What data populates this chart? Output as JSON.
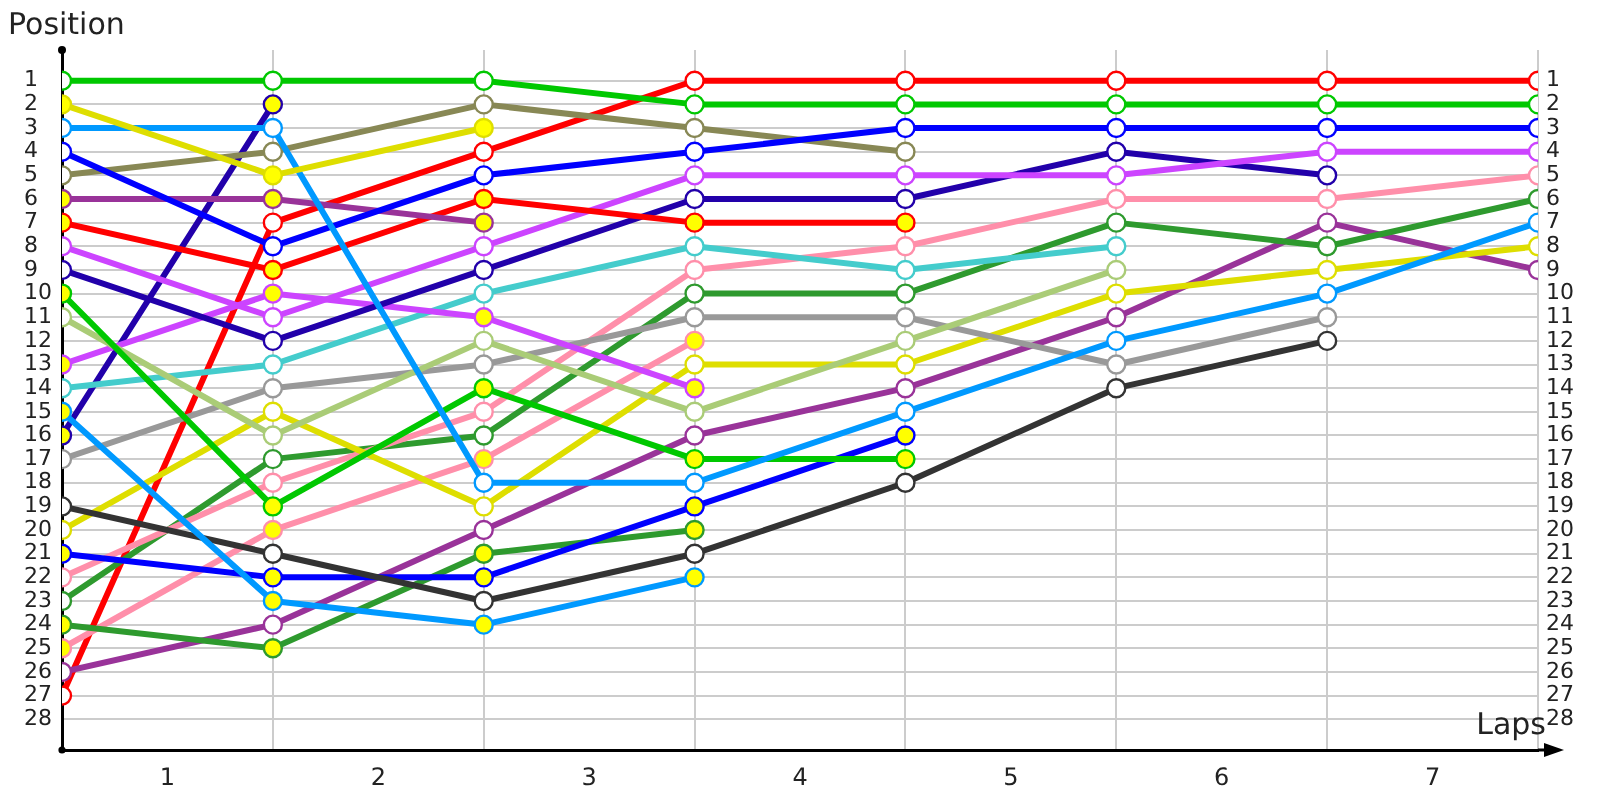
{
  "chart_data": {
    "type": "line",
    "xlabel": "Laps",
    "ylabel": "Position",
    "marker": "circle",
    "grid": true,
    "x": [
      0,
      1,
      2,
      3,
      4,
      5,
      6,
      7
    ],
    "xlim": [
      0,
      7
    ],
    "xticks": [
      {
        "value": 0,
        "label": null
      },
      {
        "value": 0.5,
        "label": "1"
      },
      {
        "value": 1,
        "label": null
      },
      {
        "value": 1.5,
        "label": "2"
      },
      {
        "value": 2,
        "label": null
      },
      {
        "value": 2.5,
        "label": "3"
      },
      {
        "value": 3,
        "label": null
      },
      {
        "value": 3.5,
        "label": "4"
      },
      {
        "value": 4,
        "label": null
      },
      {
        "value": 4.5,
        "label": "5"
      },
      {
        "value": 5,
        "label": null
      },
      {
        "value": 5.5,
        "label": "6"
      },
      {
        "value": 6,
        "label": null
      },
      {
        "value": 6.5,
        "label": "7"
      },
      {
        "value": 7,
        "label": null
      }
    ],
    "ylim": [
      29.3,
      -0.3
    ],
    "yticks": [
      1,
      2,
      3,
      4,
      5,
      6,
      7,
      8,
      9,
      10,
      11,
      12,
      13,
      14,
      15,
      16,
      17,
      18,
      19,
      20,
      21,
      22,
      23,
      24,
      25,
      26,
      27,
      28
    ],
    "y2lim": [
      29.3,
      -0.3
    ],
    "y2ticks": [
      1,
      2,
      3,
      4,
      5,
      6,
      7,
      8,
      9,
      10,
      11,
      12,
      13,
      14,
      15,
      16,
      17,
      18,
      19,
      20,
      21,
      22,
      23,
      24,
      25,
      26,
      27,
      28
    ],
    "series": [
      {
        "color": "#00c800",
        "values": [
          1,
          1,
          1,
          2,
          2,
          2,
          2,
          2
        ]
      },
      {
        "color": "#dede00",
        "values": [
          2,
          5,
          3,
          null,
          null,
          null,
          null,
          null
        ],
        "colors": [
          "#ffff00",
          "#ffff00",
          "#ffff00",
          null,
          null,
          null,
          null,
          null
        ]
      },
      {
        "color": "#0099ff",
        "values": [
          3,
          3,
          18,
          18,
          15,
          12,
          10,
          7
        ]
      },
      {
        "color": "#0000ff",
        "values": [
          4,
          8,
          5,
          4,
          3,
          3,
          3,
          3
        ]
      },
      {
        "color": "#888855",
        "values": [
          5,
          4,
          2,
          3,
          4,
          null,
          null,
          null
        ]
      },
      {
        "color": "#993399",
        "values": [
          6,
          6,
          7,
          null,
          null,
          null,
          null,
          null
        ],
        "colors": [
          "#ffff00",
          "#ffff00",
          "#ffff00",
          null,
          null,
          null,
          null,
          null
        ]
      },
      {
        "color": "#ff0000",
        "values": [
          7,
          9,
          6,
          7,
          7,
          null,
          null,
          null
        ],
        "colors": [
          "#ffff00",
          "#ffff00",
          "#ffff00",
          "#ffff00",
          "#ffff00",
          null,
          null,
          null
        ]
      },
      {
        "color": "#cc44ff",
        "values": [
          8,
          11,
          8,
          5,
          5,
          5,
          4,
          4
        ]
      },
      {
        "color": "#2200aa",
        "values": [
          9,
          12,
          9,
          6,
          6,
          4,
          5,
          null
        ]
      },
      {
        "color": "#00c800",
        "values": [
          10,
          19,
          14,
          17,
          17,
          null,
          null,
          null
        ],
        "colors": [
          "#ffff00",
          "#ffff00",
          "#ffff00",
          "#ffff00",
          "#ffff00",
          null,
          null,
          null
        ]
      },
      {
        "color": "#aacc77",
        "values": [
          11,
          16,
          12,
          15,
          12,
          9,
          null,
          null
        ]
      },
      {
        "color": "#cc44ff",
        "values": [
          13,
          10,
          11,
          14,
          null,
          null,
          null,
          null
        ],
        "colors": [
          "#ffff00",
          "#ffff00",
          "#ffff00",
          "#ffff00",
          null,
          null,
          null,
          null
        ]
      },
      {
        "color": "#44cccc",
        "values": [
          14,
          13,
          10,
          8,
          9,
          8,
          null,
          null
        ]
      },
      {
        "color": "#0099ff",
        "values": [
          15,
          23,
          24,
          22,
          null,
          null,
          null,
          null
        ],
        "colors": [
          "#ffff00",
          "#ffff00",
          "#ffff00",
          "#ffff00",
          null,
          null,
          null,
          null
        ]
      },
      {
        "color": "#2200aa",
        "values": [
          16,
          2,
          null,
          null,
          null,
          null,
          null,
          null
        ],
        "colors": [
          "#ffff00",
          "#ffff00",
          null,
          null,
          null,
          null,
          null,
          null
        ]
      },
      {
        "color": "#999999",
        "values": [
          17,
          14,
          13,
          11,
          11,
          13,
          11,
          null
        ]
      },
      {
        "color": "#333333",
        "values": [
          19,
          21,
          23,
          21,
          18,
          14,
          12,
          null
        ]
      },
      {
        "color": "#dede00",
        "values": [
          20,
          15,
          19,
          13,
          13,
          10,
          9,
          8
        ]
      },
      {
        "color": "#0000ff",
        "values": [
          21,
          22,
          22,
          19,
          16,
          null,
          null,
          null
        ],
        "colors": [
          "#ffff00",
          "#ffff00",
          "#ffff00",
          "#ffff00",
          "#ffff00",
          null,
          null,
          null
        ]
      },
      {
        "color": "#ff8faa",
        "values": [
          22,
          18,
          15,
          9,
          8,
          6,
          6,
          5
        ]
      },
      {
        "color": "#2e9a2e",
        "values": [
          23,
          17,
          16,
          10,
          10,
          7,
          8,
          6
        ]
      },
      {
        "color": "#2e9a2e",
        "values": [
          24,
          25,
          21,
          20,
          null,
          null,
          null,
          null
        ],
        "colors": [
          "#ffff00",
          "#ffff00",
          "#ffff00",
          "#ffff00",
          null,
          null,
          null,
          null
        ]
      },
      {
        "color": "#ff8faa",
        "values": [
          25,
          20,
          17,
          12,
          null,
          null,
          null,
          null
        ],
        "colors": [
          "#ffff00",
          "#ffff00",
          "#ffff00",
          "#ffff00",
          null,
          null,
          null,
          null
        ]
      },
      {
        "color": "#993399",
        "values": [
          26,
          24,
          20,
          16,
          14,
          11,
          7,
          9
        ]
      },
      {
        "color": "#ff0000",
        "values": [
          27,
          7,
          4,
          1,
          1,
          1,
          1,
          1
        ]
      }
    ]
  }
}
